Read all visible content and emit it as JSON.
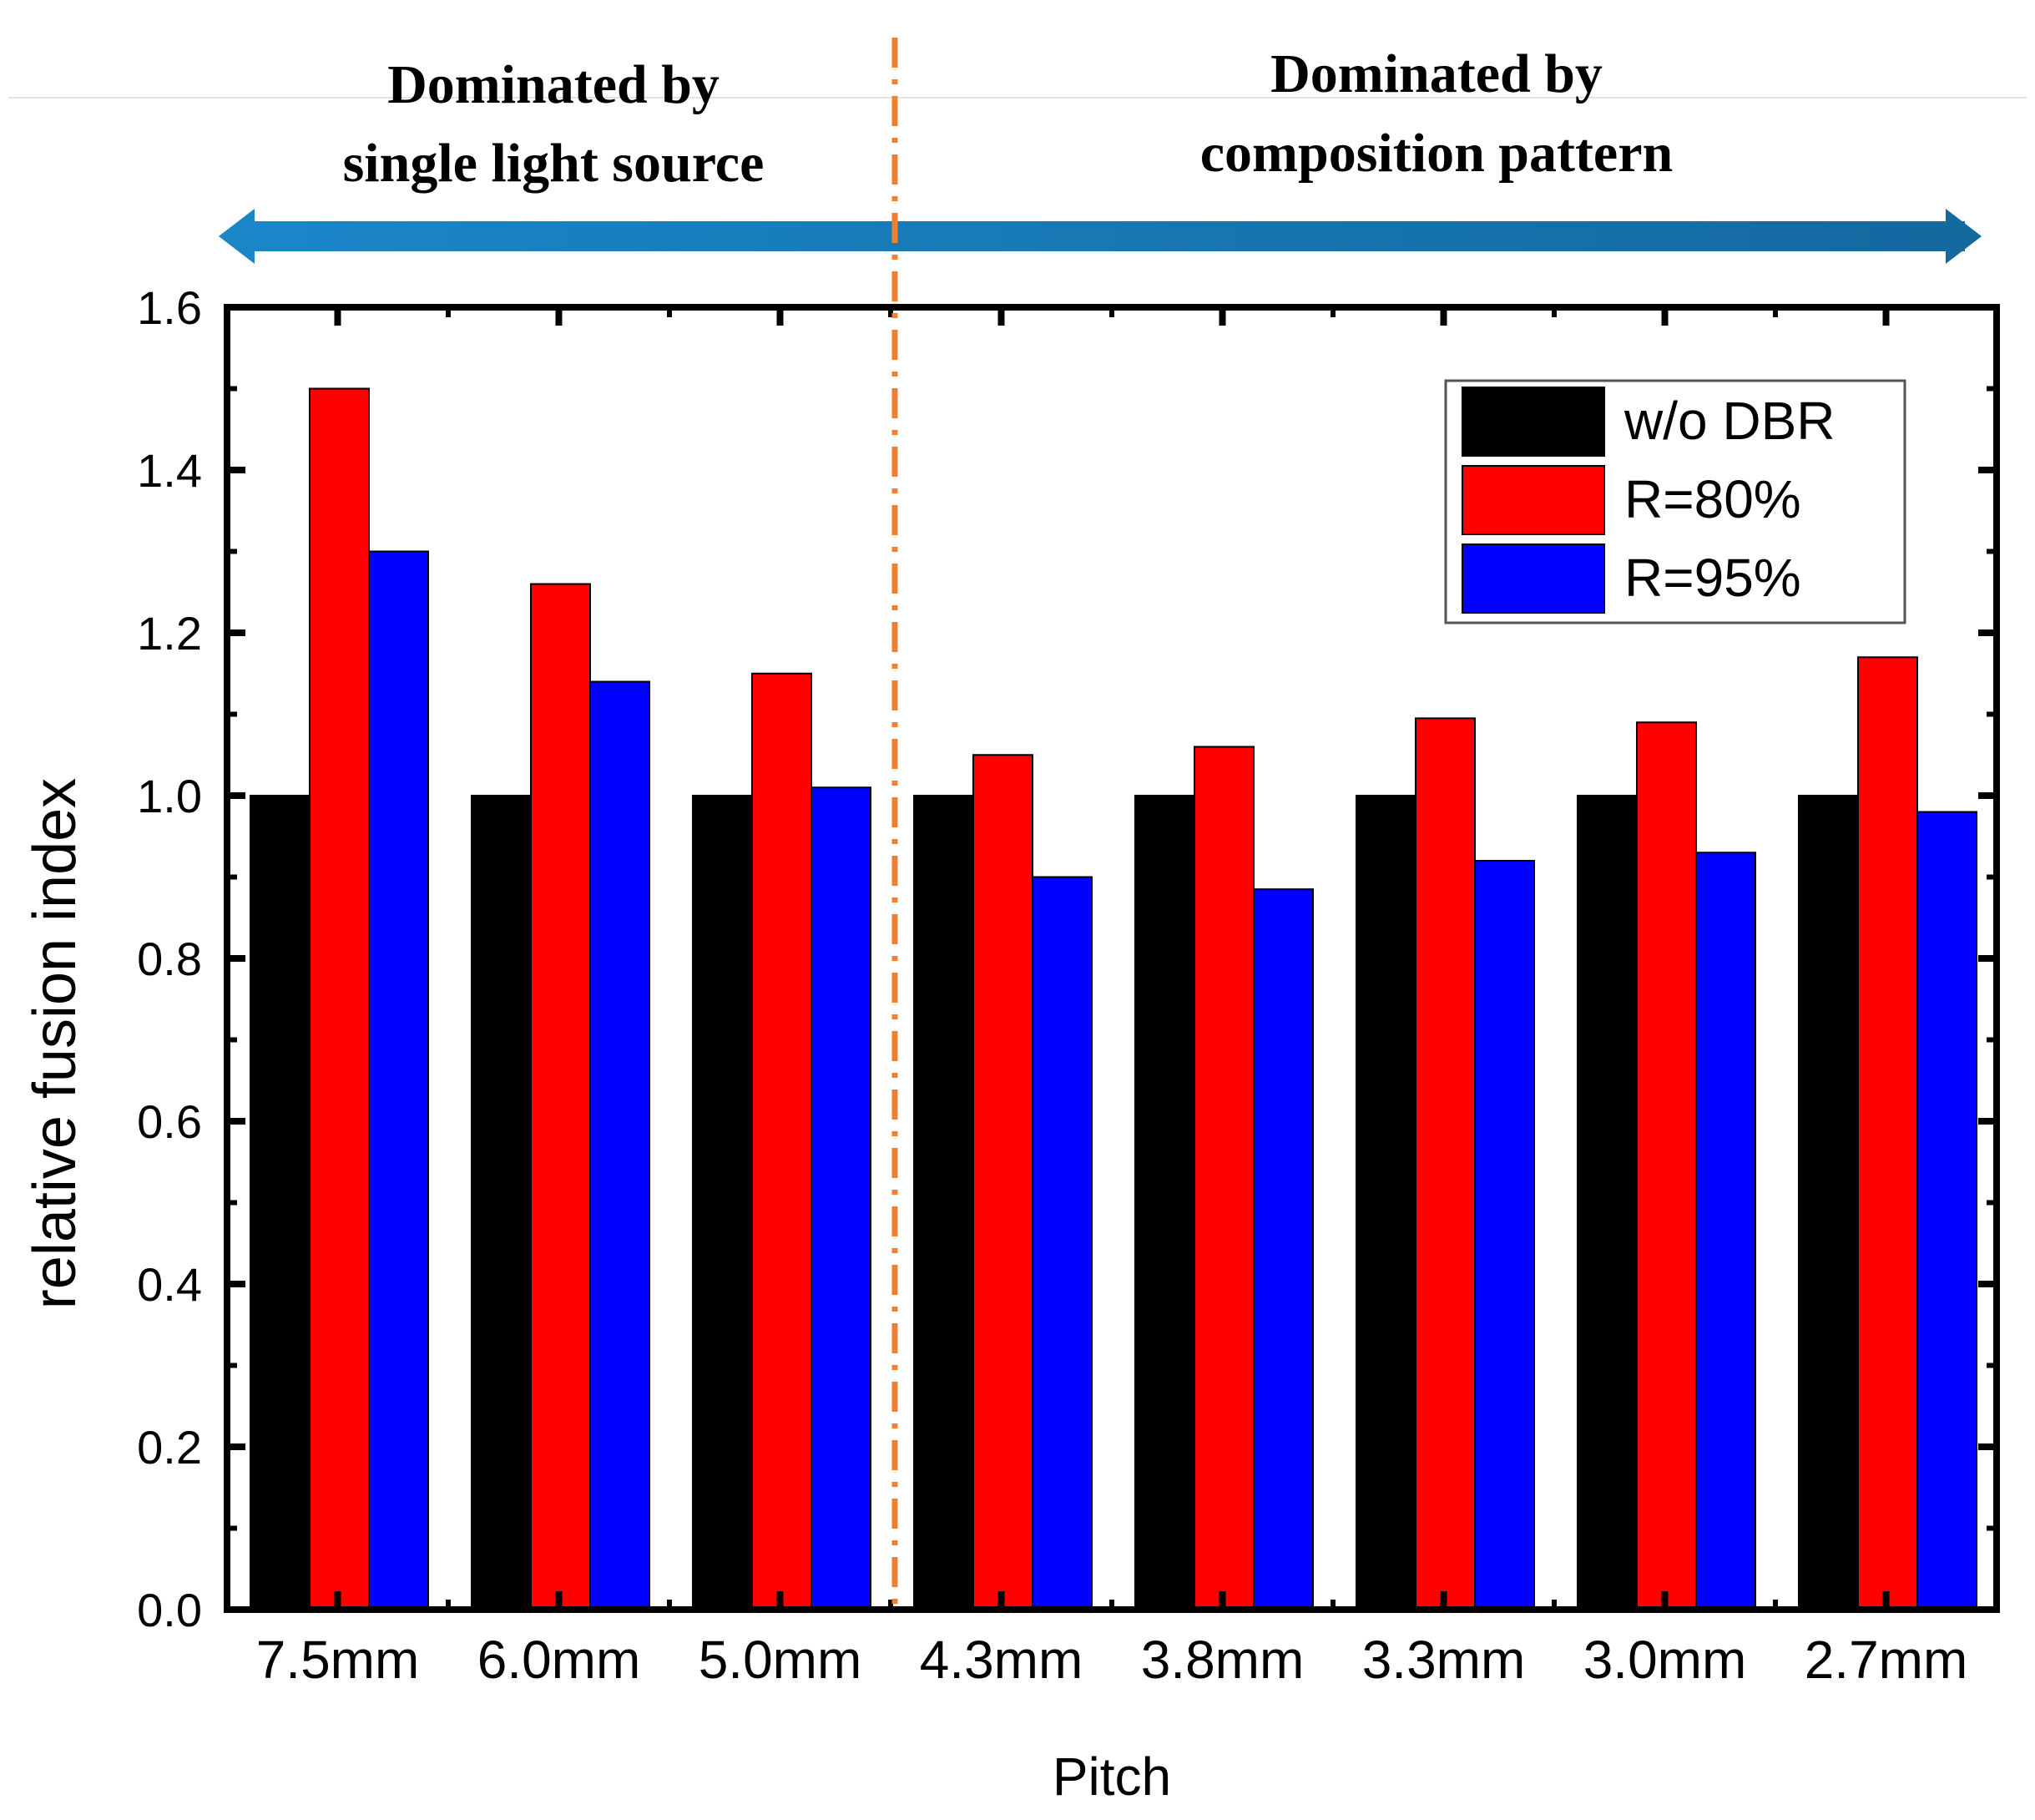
{
  "chart_data": {
    "type": "bar",
    "title": "",
    "xlabel": "Pitch",
    "ylabel": "relative fusion index",
    "categories": [
      "7.5mm",
      "6.0mm",
      "5.0mm",
      "4.3mm",
      "3.8mm",
      "3.3mm",
      "3.0mm",
      "2.7mm"
    ],
    "ylim": [
      0,
      1.6
    ],
    "yticks": [
      "0.0",
      "0.2",
      "0.4",
      "0.6",
      "0.8",
      "1.0",
      "1.2",
      "1.4",
      "1.6"
    ],
    "series": [
      {
        "name": "w/o DBR",
        "color": "#000000",
        "values": [
          1.0,
          1.0,
          1.0,
          1.0,
          1.0,
          1.0,
          1.0,
          1.0
        ]
      },
      {
        "name": "R=80%",
        "color": "#ff0000",
        "values": [
          1.5,
          1.26,
          1.15,
          1.05,
          1.06,
          1.095,
          1.09,
          1.17
        ]
      },
      {
        "name": "R=95%",
        "color": "#0000ff",
        "values": [
          1.3,
          1.14,
          1.01,
          0.9,
          0.885,
          0.92,
          0.93,
          0.98
        ]
      }
    ],
    "legend": "top-right",
    "grid": false,
    "annotations": {
      "left_region": [
        "Dominated by",
        "single light source"
      ],
      "right_region": [
        "Dominated by",
        "composition pattern"
      ],
      "divider_color": "#f08030",
      "arrow_color": "#1a7fc0"
    }
  }
}
